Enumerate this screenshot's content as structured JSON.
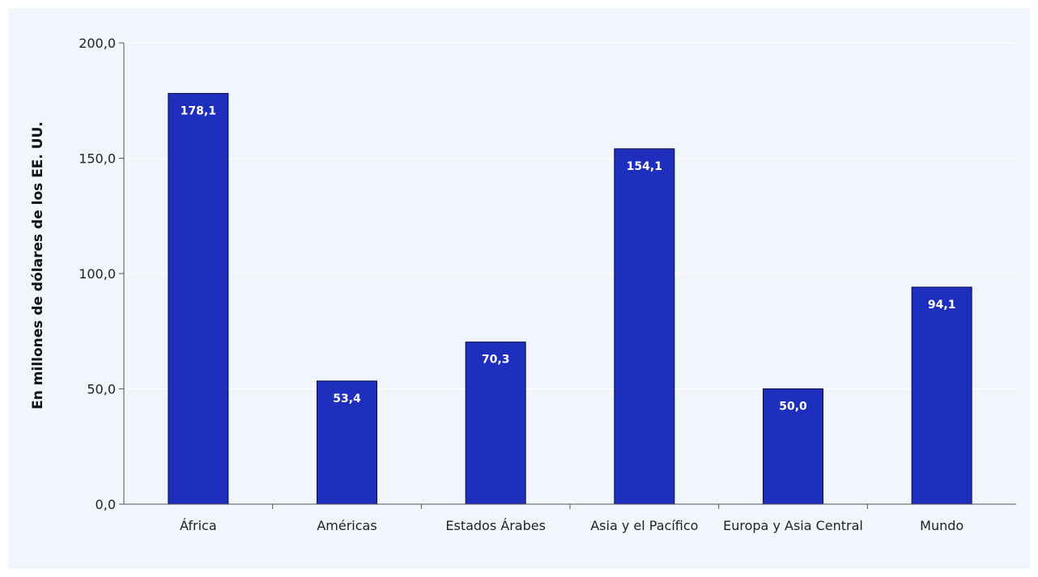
{
  "chart_data": {
    "type": "bar",
    "categories": [
      "África",
      "Américas",
      "Estados Árabes",
      "Asia y el Pacífico",
      "Europa y Asia Central",
      "Mundo"
    ],
    "values": [
      178.1,
      53.4,
      70.3,
      154.1,
      50.0,
      94.1
    ],
    "data_labels": [
      "178,1",
      "53,4",
      "70,3",
      "154,1",
      "50,0",
      "94,1"
    ],
    "ylabel": "En millones de dólares de los EE. UU.",
    "ylim": [
      0,
      200
    ],
    "y_ticks": [
      0,
      50,
      100,
      150,
      200
    ],
    "y_tick_labels": [
      "0,0",
      "50,0",
      "100,0",
      "150,0",
      "200,0"
    ],
    "grid": "horizontal",
    "legend": "none",
    "bar_color": "#1f2fbd",
    "bar_border_color": "#0a0f40",
    "background_color": "#f0f6fc",
    "gridline_color": "#ffffff"
  }
}
